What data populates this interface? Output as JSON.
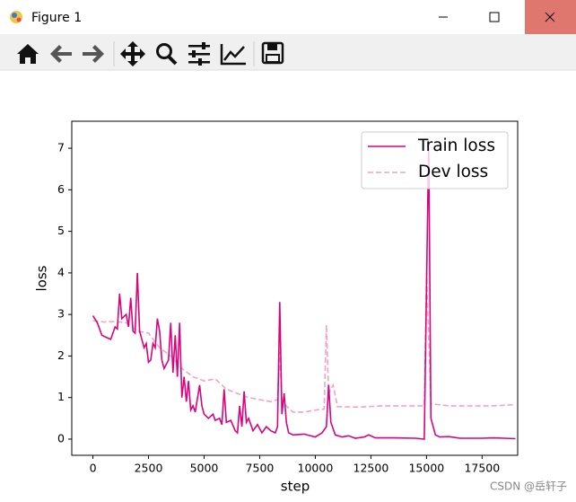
{
  "window": {
    "title": "Figure 1"
  },
  "watermark": "CSDN @岳轩子",
  "chart_data": {
    "type": "line",
    "xlabel": "step",
    "ylabel": "loss",
    "xlim": [
      -950,
      19100
    ],
    "ylim": [
      -0.39,
      7.65
    ],
    "xticks": [
      0,
      2500,
      5000,
      7500,
      10000,
      12500,
      15000,
      17500
    ],
    "yticks": [
      0,
      1,
      2,
      3,
      4,
      5,
      6,
      7
    ],
    "legend": "upper right",
    "series": [
      {
        "name": "Train loss",
        "color": "#d9037f",
        "dash": "solid",
        "x": [
          0,
          200,
          400,
          600,
          800,
          1000,
          1100,
          1200,
          1300,
          1500,
          1600,
          1700,
          1800,
          1900,
          2000,
          2100,
          2200,
          2300,
          2400,
          2500,
          2600,
          2700,
          2800,
          2900,
          3000,
          3100,
          3200,
          3400,
          3500,
          3600,
          3700,
          3800,
          3900,
          4000,
          4100,
          4200,
          4300,
          4400,
          4500,
          4600,
          4800,
          4900,
          5000,
          5200,
          5400,
          5500,
          5700,
          5800,
          5900,
          6000,
          6200,
          6400,
          6500,
          6600,
          6700,
          6800,
          6900,
          7000,
          7200,
          7400,
          7600,
          7800,
          8000,
          8200,
          8300,
          8400,
          8500,
          8600,
          8700,
          8800,
          9000,
          9500,
          10000,
          10300,
          10500,
          10600,
          10700,
          10900,
          11200,
          11500,
          11800,
          12200,
          12400,
          12700,
          13500,
          14500,
          14900,
          15100,
          15200,
          15400,
          15600,
          16000,
          16500,
          17000,
          17500,
          18000,
          18500,
          19000
        ],
        "values": [
          2.97,
          2.8,
          2.5,
          2.45,
          2.4,
          2.7,
          2.65,
          3.5,
          2.9,
          3.0,
          2.7,
          3.4,
          2.6,
          2.55,
          4.0,
          2.6,
          2.4,
          2.2,
          2.3,
          1.85,
          1.9,
          2.3,
          2.2,
          2.9,
          2.6,
          1.9,
          1.7,
          1.9,
          2.8,
          1.6,
          2.5,
          1.5,
          2.8,
          1.0,
          1.5,
          0.9,
          1.4,
          0.7,
          0.8,
          0.65,
          1.3,
          0.8,
          0.6,
          0.5,
          0.6,
          0.45,
          0.5,
          0.35,
          1.2,
          0.4,
          0.45,
          0.2,
          0.15,
          0.8,
          0.3,
          1.15,
          0.4,
          0.5,
          0.2,
          0.35,
          0.15,
          0.3,
          0.2,
          0.15,
          0.3,
          3.3,
          0.6,
          1.1,
          0.4,
          0.15,
          0.1,
          0.12,
          0.05,
          0.15,
          0.3,
          1.3,
          0.4,
          0.1,
          0.05,
          0.08,
          0.02,
          0.05,
          0.1,
          0.03,
          0.03,
          0.02,
          0.0,
          7.2,
          0.5,
          0.1,
          0.05,
          0.06,
          0.02,
          0.02,
          0.02,
          0.03,
          0.02,
          0.01
        ]
      },
      {
        "name": "Dev loss",
        "color": "#f4a3c3",
        "dash": "dashed",
        "x": [
          0,
          500,
          1000,
          1500,
          2000,
          2500,
          3000,
          3500,
          4000,
          4500,
          5000,
          5500,
          6000,
          6500,
          7000,
          7500,
          8000,
          8300,
          8400,
          8500,
          9000,
          9500,
          10000,
          10400,
          10500,
          10600,
          10800,
          11000,
          12000,
          13000,
          14000,
          14900,
          15000,
          15200,
          16000,
          17000,
          18000,
          19000
        ],
        "values": [
          2.85,
          2.82,
          2.83,
          2.8,
          2.6,
          2.55,
          2.2,
          2.0,
          1.7,
          1.5,
          1.4,
          1.45,
          1.2,
          1.1,
          1.0,
          0.95,
          0.9,
          0.95,
          2.1,
          0.9,
          0.65,
          0.65,
          0.7,
          0.72,
          2.75,
          1.1,
          1.3,
          0.78,
          0.77,
          0.8,
          0.8,
          0.8,
          4.0,
          0.85,
          0.8,
          0.8,
          0.8,
          0.83
        ]
      }
    ]
  }
}
